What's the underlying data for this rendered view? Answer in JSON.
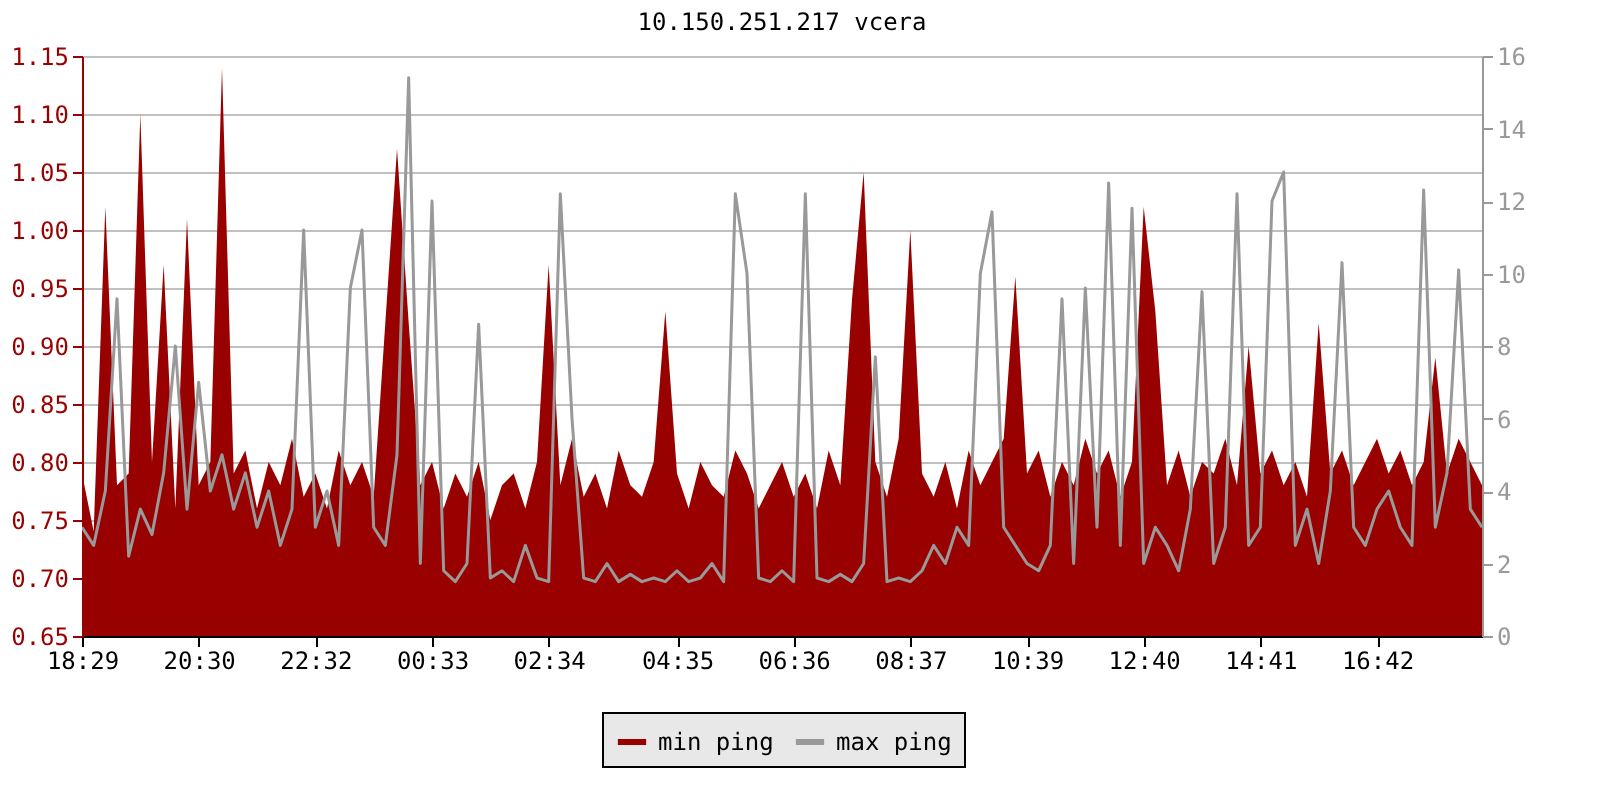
{
  "chart_data": {
    "type": "area",
    "title": "10.150.251.217 vcera",
    "categories": [
      "18:29",
      null,
      null,
      null,
      null,
      null,
      null,
      null,
      null,
      null,
      "20:30",
      null,
      null,
      null,
      null,
      null,
      null,
      null,
      null,
      null,
      "22:32",
      null,
      null,
      null,
      null,
      null,
      null,
      null,
      null,
      null,
      "00:33",
      null,
      null,
      null,
      null,
      null,
      null,
      null,
      null,
      null,
      "02:34",
      null,
      null,
      null,
      null,
      null,
      null,
      null,
      null,
      null,
      null,
      "04:35",
      null,
      null,
      null,
      null,
      null,
      null,
      null,
      null,
      null,
      "06:36",
      null,
      null,
      null,
      null,
      null,
      null,
      null,
      null,
      null,
      "08:37",
      null,
      null,
      null,
      null,
      null,
      null,
      null,
      null,
      null,
      "10:39",
      null,
      null,
      null,
      null,
      null,
      null,
      null,
      null,
      null,
      "12:40",
      null,
      null,
      null,
      null,
      null,
      null,
      null,
      null,
      null,
      "14:41",
      null,
      null,
      null,
      null,
      null,
      null,
      null,
      null,
      null,
      "16:42",
      null,
      null,
      null,
      null,
      null,
      null,
      null,
      null,
      null
    ],
    "series": [
      {
        "name": "min ping",
        "color": "#990000",
        "values": [
          0.79,
          0.74,
          1.02,
          0.78,
          0.79,
          1.1,
          0.8,
          0.97,
          0.76,
          1.01,
          0.78,
          0.8,
          1.14,
          0.79,
          0.81,
          0.76,
          0.8,
          0.78,
          0.82,
          0.77,
          0.79,
          0.76,
          0.81,
          0.78,
          0.8,
          0.77,
          0.92,
          1.07,
          0.92,
          0.78,
          0.8,
          0.76,
          0.79,
          0.77,
          0.8,
          0.75,
          0.78,
          0.79,
          0.76,
          0.8,
          0.97,
          0.78,
          0.82,
          0.77,
          0.79,
          0.76,
          0.81,
          0.78,
          0.77,
          0.8,
          0.93,
          0.79,
          0.76,
          0.8,
          0.78,
          0.77,
          0.81,
          0.79,
          0.76,
          0.78,
          0.8,
          0.77,
          0.79,
          0.76,
          0.81,
          0.78,
          0.94,
          1.05,
          0.8,
          0.77,
          0.82,
          1.0,
          0.79,
          0.77,
          0.8,
          0.76,
          0.81,
          0.78,
          0.8,
          0.82,
          0.96,
          0.79,
          0.81,
          0.77,
          0.8,
          0.78,
          0.82,
          0.79,
          0.81,
          0.77,
          0.8,
          1.02,
          0.93,
          0.78,
          0.81,
          0.77,
          0.8,
          0.79,
          0.82,
          0.78,
          0.9,
          0.79,
          0.81,
          0.78,
          0.8,
          0.77,
          0.92,
          0.79,
          0.81,
          0.78,
          0.8,
          0.82,
          0.79,
          0.81,
          0.78,
          0.8,
          0.89,
          0.79,
          0.82,
          0.8,
          0.78
        ]
      },
      {
        "name": "max ping",
        "type": "line",
        "axis": "y2",
        "color": "#999999",
        "values": [
          3.0,
          2.5,
          4.0,
          9.3,
          2.2,
          3.5,
          2.8,
          4.5,
          8.0,
          3.5,
          7.0,
          4.0,
          5.0,
          3.5,
          4.5,
          3.0,
          4.0,
          2.5,
          3.5,
          11.2,
          3.0,
          4.0,
          2.5,
          9.6,
          11.2,
          3.0,
          2.5,
          5.0,
          15.4,
          2.0,
          12.0,
          1.8,
          1.5,
          2.0,
          8.6,
          1.6,
          1.8,
          1.5,
          2.5,
          1.6,
          1.5,
          12.2,
          6.0,
          1.6,
          1.5,
          2.0,
          1.5,
          1.7,
          1.5,
          1.6,
          1.5,
          1.8,
          1.5,
          1.6,
          2.0,
          1.5,
          12.2,
          10.0,
          1.6,
          1.5,
          1.8,
          1.5,
          12.2,
          1.6,
          1.5,
          1.7,
          1.5,
          2.0,
          7.7,
          1.5,
          1.6,
          1.5,
          1.8,
          2.5,
          2.0,
          3.0,
          2.5,
          10.0,
          11.7,
          3.0,
          2.5,
          2.0,
          1.8,
          2.5,
          9.3,
          2.0,
          9.6,
          3.0,
          12.5,
          2.5,
          11.8,
          2.0,
          3.0,
          2.5,
          1.8,
          3.5,
          9.5,
          2.0,
          3.0,
          12.2,
          2.5,
          3.0,
          12.0,
          12.8,
          2.5,
          3.5,
          2.0,
          4.0,
          10.3,
          3.0,
          2.5,
          3.5,
          4.0,
          3.0,
          2.5,
          12.3,
          3.0,
          4.5,
          10.1,
          3.5,
          3.0
        ]
      }
    ],
    "ylim": [
      0.65,
      1.15
    ],
    "yticks": [
      {
        "value": 0.65,
        "label": "0.65"
      },
      {
        "value": 0.7,
        "label": "0.70"
      },
      {
        "value": 0.75,
        "label": "0.75"
      },
      {
        "value": 0.8,
        "label": "0.80"
      },
      {
        "value": 0.85,
        "label": "0.85"
      },
      {
        "value": 0.9,
        "label": "0.90"
      },
      {
        "value": 0.95,
        "label": "0.95"
      },
      {
        "value": 1.0,
        "label": "1.00"
      },
      {
        "value": 1.05,
        "label": "1.05"
      },
      {
        "value": 1.1,
        "label": "1.10"
      },
      {
        "value": 1.15,
        "label": "1.15"
      }
    ],
    "y2lim": [
      0,
      16
    ],
    "y2ticks": [
      0,
      2,
      4,
      6,
      8,
      10,
      12,
      14,
      16
    ],
    "grid": "y",
    "legend": "bottom"
  }
}
